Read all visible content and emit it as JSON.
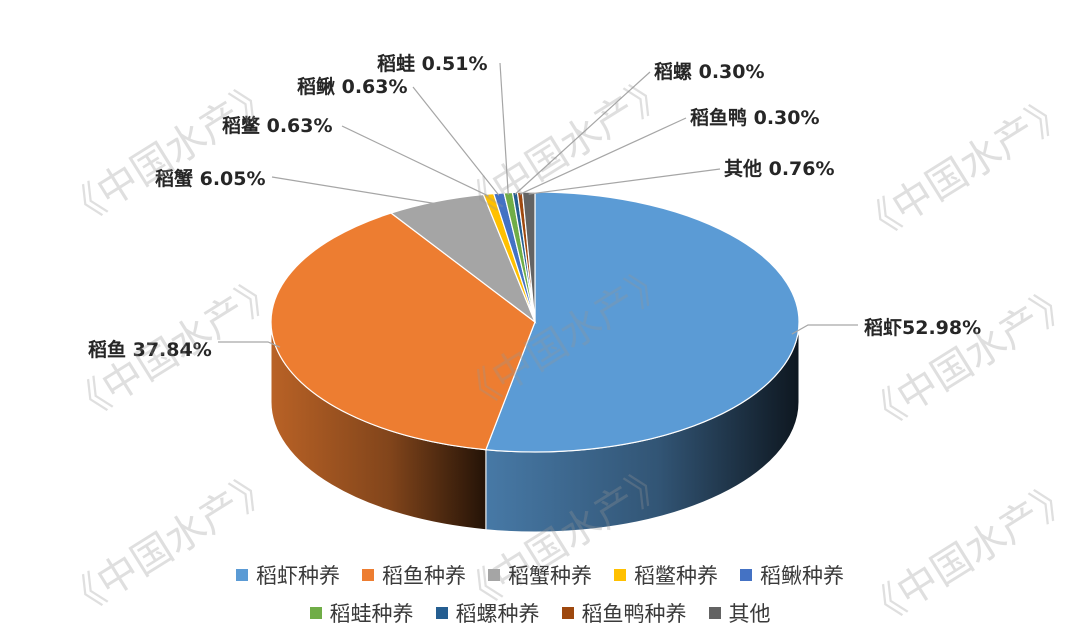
{
  "chart_data": {
    "type": "pie",
    "title": "",
    "categories": [
      "稻虾种养",
      "稻鱼种养",
      "稻蟹种养",
      "稻鳖种养",
      "稻鳅种养",
      "稻蛙种养",
      "稻螺种养",
      "稻鱼鸭种养",
      "其他"
    ],
    "values": [
      52.98,
      37.84,
      6.05,
      0.63,
      0.63,
      0.51,
      0.3,
      0.3,
      0.76
    ],
    "colors": [
      "#5b9bd5",
      "#ed7d31",
      "#a5a5a5",
      "#ffc000",
      "#4472c4",
      "#70ad47",
      "#255e91",
      "#9e480e",
      "#636363"
    ],
    "data_labels": [
      "稻虾52.98%",
      "稻鱼 37.84%",
      "稻蟹 6.05%",
      "稻鳖 0.63%",
      "稻鳅 0.63%",
      "稻蛙 0.51%",
      "稻螺 0.30%",
      "稻鱼鸭 0.30%",
      "其他 0.76%"
    ],
    "legend_position": "bottom",
    "grid": false
  },
  "watermark": "《中国水产》"
}
